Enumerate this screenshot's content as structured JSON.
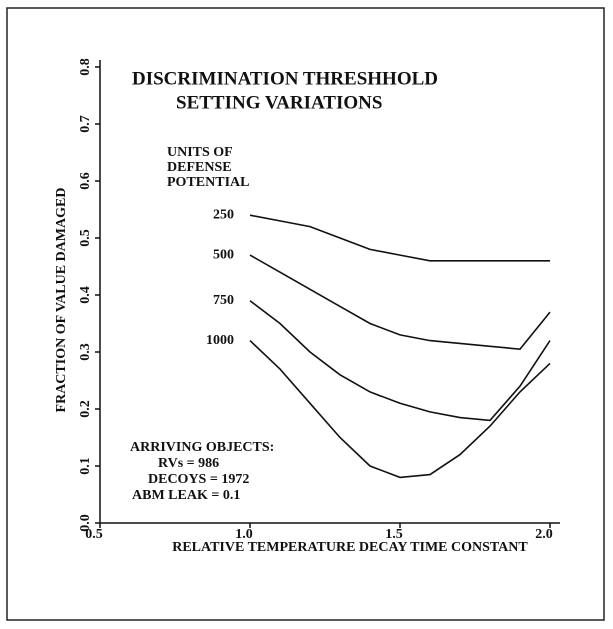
{
  "chart_data": {
    "type": "line",
    "title": "DISCRIMINATION THRESHHOLD",
    "subtitle": "SETTING VARIATIONS",
    "x_label": "RELATIVE TEMPERATURE DECAY TIME CONSTANT",
    "y_label": "FRACTION OF VALUE DAMAGED",
    "legend_title": [
      "UNITS OF",
      "DEFENSE",
      "POTENTIAL"
    ],
    "annotations": [
      "ARRIVING OBJECTS:",
      "RVs = 986",
      "DECOYS = 1972",
      "ABM LEAK = 0.1"
    ],
    "x": [
      1.0,
      1.1,
      1.2,
      1.3,
      1.4,
      1.5,
      1.6,
      1.7,
      1.8,
      1.9,
      2.0
    ],
    "series": [
      {
        "name": "250",
        "color": "#111111",
        "values": [
          0.54,
          0.53,
          0.52,
          0.5,
          0.48,
          0.47,
          0.46,
          0.46,
          0.46,
          0.46,
          0.46
        ]
      },
      {
        "name": "500",
        "color": "#111111",
        "values": [
          0.47,
          0.44,
          0.41,
          0.38,
          0.35,
          0.33,
          0.32,
          0.315,
          0.31,
          0.305,
          0.37
        ]
      },
      {
        "name": "750",
        "color": "#111111",
        "values": [
          0.39,
          0.35,
          0.3,
          0.26,
          0.23,
          0.21,
          0.195,
          0.185,
          0.18,
          0.24,
          0.32
        ]
      },
      {
        "name": "1000",
        "color": "#111111",
        "values": [
          0.32,
          0.27,
          0.21,
          0.15,
          0.1,
          0.08,
          0.085,
          0.12,
          0.17,
          0.23,
          0.28
        ]
      }
    ],
    "xlim": [
      0.5,
      2.0
    ],
    "ylim": [
      0.0,
      0.8
    ],
    "xticks": [
      0.5,
      {
        "value": 1,
        "label": "1.0"
      },
      1.5,
      {
        "value": 2,
        "label": "2.0"
      }
    ],
    "yticks": [
      {
        "value": 0,
        "label": "0.0"
      },
      0.1,
      0.2,
      0.3,
      0.4,
      0.5,
      0.6,
      0.7,
      0.8
    ]
  }
}
